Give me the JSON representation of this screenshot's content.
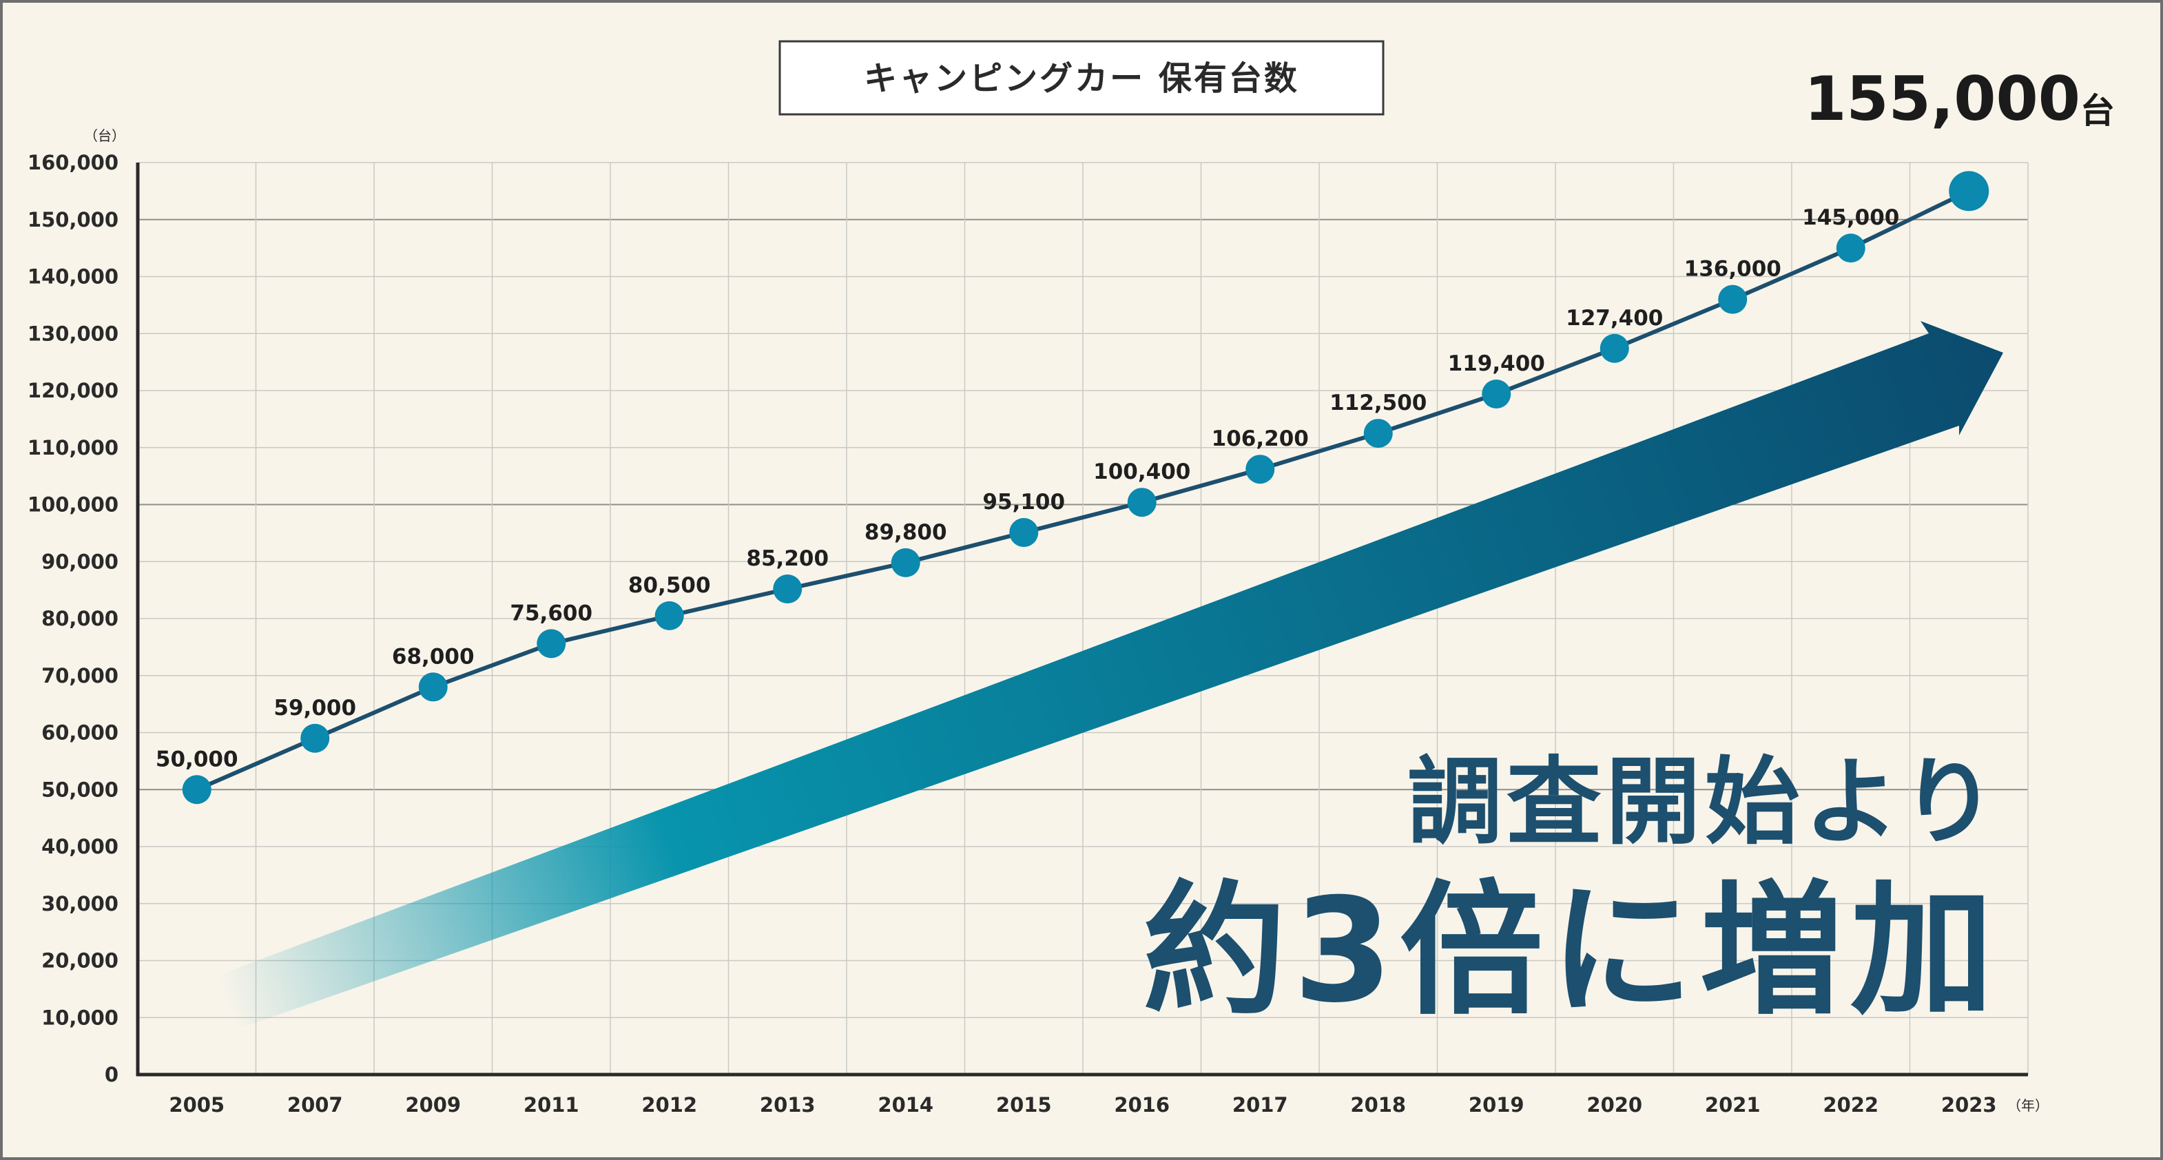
{
  "chart_data": {
    "type": "line",
    "title": "キャンピングカー 保有台数",
    "y_unit": "（台）",
    "x_unit": "（年）",
    "ylim": [
      0,
      160000
    ],
    "yticks": [
      0,
      10000,
      20000,
      30000,
      40000,
      50000,
      60000,
      70000,
      80000,
      90000,
      100000,
      110000,
      120000,
      130000,
      140000,
      150000,
      160000
    ],
    "ytick_labels": [
      "0",
      "10,000",
      "20,000",
      "30,000",
      "40,000",
      "50,000",
      "60,000",
      "70,000",
      "80,000",
      "90,000",
      "100,000",
      "110,000",
      "120,000",
      "130,000",
      "140,000",
      "150,000",
      "160,000"
    ],
    "categories": [
      "2005",
      "2007",
      "2009",
      "2011",
      "2012",
      "2013",
      "2014",
      "2015",
      "2016",
      "2017",
      "2018",
      "2019",
      "2020",
      "2021",
      "2022",
      "2023"
    ],
    "series": [
      {
        "values": [
          50000,
          59000,
          68000,
          75600,
          80500,
          85200,
          89800,
          95100,
          100400,
          106200,
          112500,
          119400,
          127400,
          136000,
          145000,
          155000
        ],
        "labels": [
          "50,000",
          "59,000",
          "68,000",
          "75,600",
          "80,500",
          "85,200",
          "89,800",
          "95,100",
          "100,400",
          "106,200",
          "112,500",
          "119,400",
          "127,400",
          "136,000",
          "145,000",
          ""
        ]
      }
    ],
    "highlight": {
      "value": "155,000",
      "unit": "台"
    },
    "grid": true,
    "colors": {
      "line": "#1d4f6e",
      "marker": "#0b89ae",
      "grid": "#c9c9c4",
      "arrow_dark": "#0b4b6e",
      "arrow_mid": "#0894ad",
      "callout": "#1d4f6e"
    }
  },
  "callout": {
    "line1": "調査開始より",
    "line2": "約3倍に増加"
  }
}
